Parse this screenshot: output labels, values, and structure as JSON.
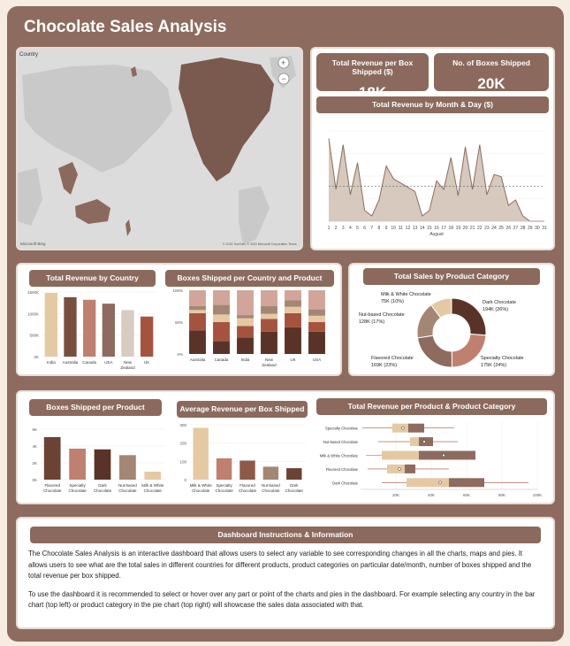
{
  "title": "Chocolate Sales Analysis",
  "map": {
    "label": "Country",
    "attribution": "Microsoft Bing",
    "copyright": "© 2023 TomTom, © 2023 Microsoft Corporation  Terms"
  },
  "kpi": [
    {
      "label": "Total Revenue per Box Shipped ($)",
      "value": "18K"
    },
    {
      "label": "No. of Boxes Shipped",
      "value": "20K"
    }
  ],
  "colors": {
    "frame": "#8d6b5e",
    "dark": "#6b4233",
    "salmon": "#c08070",
    "cocoa": "#5a3328",
    "tan": "#a38774",
    "cream": "#e5c9a3",
    "peach": "#ecc7b6"
  },
  "chart_data": [
    {
      "id": "month_day",
      "type": "area",
      "title": "Total Revenue by Month & Day ($)",
      "xlabel": "August",
      "x": [
        "1",
        "2",
        "3",
        "4",
        "5",
        "6",
        "7",
        "8",
        "9",
        "10",
        "11",
        "12",
        "13",
        "14",
        "15",
        "16",
        "17",
        "18",
        "19",
        "20",
        "21",
        "22",
        "23",
        "24",
        "25",
        "26",
        "27",
        "28",
        "29",
        "30",
        "31"
      ],
      "x_ticks": [
        "1",
        "2",
        "3",
        "4",
        "5",
        "6",
        "7",
        "8",
        "9",
        "10",
        "11",
        "12",
        "13",
        "14",
        "15",
        "16",
        "17",
        "18",
        "19",
        "20",
        "21",
        "22",
        "23",
        "24",
        "25",
        "26",
        "27",
        "28",
        "29",
        "30",
        "31"
      ],
      "values": [
        78,
        30,
        72,
        25,
        55,
        10,
        5,
        20,
        52,
        40,
        36,
        32,
        28,
        5,
        10,
        38,
        30,
        60,
        24,
        70,
        30,
        72,
        25,
        44,
        42,
        15,
        20,
        5,
        0,
        0,
        0
      ],
      "avg_line": 33,
      "ylim": [
        0,
        85
      ]
    },
    {
      "id": "rev_country",
      "type": "bar",
      "title": "Total Revenue by Country",
      "categories": [
        "India",
        "Australia",
        "Canada",
        "USA",
        "New Zealand",
        "UK"
      ],
      "values": [
        1480,
        1380,
        1320,
        1230,
        1080,
        930
      ],
      "y_ticks": [
        "0K",
        "500K",
        "1000K",
        "1500K"
      ],
      "ylim": [
        0,
        1500
      ]
    },
    {
      "id": "boxes_country_cat",
      "type": "bar",
      "stacked": true,
      "title": "Boxes Shipped per Country and Product Category",
      "categories": [
        "Australia",
        "Canada",
        "India",
        "New Zealand",
        "UK",
        "USA"
      ],
      "series": [
        {
          "name": "Dark Chocolate",
          "values": [
            37,
            20,
            26,
            35,
            42,
            35
          ]
        },
        {
          "name": "Flavored Chocolate",
          "values": [
            27,
            30,
            18,
            20,
            22,
            15
          ]
        },
        {
          "name": "Nut-based Chocolate",
          "values": [
            5,
            12,
            12,
            8,
            10,
            10
          ]
        },
        {
          "name": "Milk & White Chocolate",
          "values": [
            6,
            15,
            5,
            12,
            10,
            10
          ]
        },
        {
          "name": "Specialty Chocolate",
          "values": [
            25,
            23,
            39,
            25,
            16,
            30
          ]
        }
      ],
      "y_ticks": [
        "0%",
        "50%",
        "100%"
      ],
      "ylim": [
        0,
        100
      ]
    },
    {
      "id": "sales_category",
      "type": "pie",
      "donut": true,
      "title": "Total Sales by Product Category",
      "labels": [
        "Dark Chocolate",
        "Specialty Chocolate",
        "Flavored Chocolate",
        "Nut-based Chocolate",
        "Milk & White Chocolate"
      ],
      "values": [
        194,
        175,
        169,
        128,
        75
      ],
      "label_lines": [
        [
          "Dark Chocolate",
          "194K (26%)"
        ],
        [
          "Specialty Chocolate",
          "175K (24%)"
        ],
        [
          "Flavored Chocolate",
          "169K (23%)"
        ],
        [
          "Nut-based Chocolate",
          "128K (17%)"
        ],
        [
          "Milk & White Chocolate",
          "75K (10%)"
        ]
      ]
    },
    {
      "id": "boxes_category",
      "type": "bar",
      "title": "Boxes Shipped per Product Category",
      "categories": [
        "Flavored Chocolate",
        "Specialty Chocolate",
        "Dark Chocolate",
        "Nut-based Chocolate",
        "Milk & White Chocolate"
      ],
      "values": [
        5.9,
        4.3,
        4.2,
        3.4,
        1.1
      ],
      "y_ticks": [
        "0K",
        "2K",
        "4K",
        "6K"
      ],
      "ylim": [
        0,
        7
      ]
    },
    {
      "id": "avg_rev_box",
      "type": "bar",
      "title": "Average Revenue per Box Shipped",
      "categories": [
        "Milk & White Chocolate",
        "Specialty Chocolate",
        "Flavored Chocolate",
        "Nut-based Chocolate",
        "Dark Chocolate"
      ],
      "values": [
        340,
        140,
        125,
        85,
        75
      ],
      "y_ticks": [
        "0",
        "100",
        "200",
        "300"
      ],
      "ylim": [
        0,
        360
      ]
    },
    {
      "id": "rev_product",
      "type": "box",
      "title": "Total Revenue per Product & Product Category",
      "categories": [
        "Specialty Chocolate",
        "Nut-based Chocolate",
        "Milk & White Chocolate",
        "Flavored Chocolate",
        "Dark Chocolate"
      ],
      "boxes": [
        {
          "min": 1,
          "q1": 18,
          "median": 27,
          "q3": 36,
          "max": 53,
          "mean": 24
        },
        {
          "min": 10,
          "q1": 28,
          "median": 33,
          "q3": 41,
          "max": 55,
          "mean": 36
        },
        {
          "min": 3,
          "q1": 12,
          "median": 33,
          "q3": 65,
          "max": 65,
          "mean": 47
        },
        {
          "min": 4,
          "q1": 15,
          "median": 25,
          "q3": 31,
          "max": 50,
          "mean": 22
        },
        {
          "min": 12,
          "q1": 26,
          "median": 50,
          "q3": 70,
          "max": 95,
          "mean": 45
        }
      ],
      "x_ticks": [
        "20K",
        "40K",
        "60K",
        "80K",
        "100K"
      ],
      "xlim": [
        0,
        100
      ]
    }
  ],
  "info": {
    "header": "Dashboard Instructions & Information",
    "p1": "The Chocolate Sales Analysis is an interactive dashboard that allows users to select any variable to see corresponding changes in all the charts, maps and pies. It allows users to see what are the total sales in different countries for different products, product categories on particular date/month, number of boxes shipped and the total revenue per box shipped.",
    "p2": "To use the dashboard it is recommended to select or hover over any part or point of the charts and pies in the dashboard. For example selecting any country in the bar chart (top left) or product category in the pie chart (top right) will showcase the sales data associated with that."
  }
}
